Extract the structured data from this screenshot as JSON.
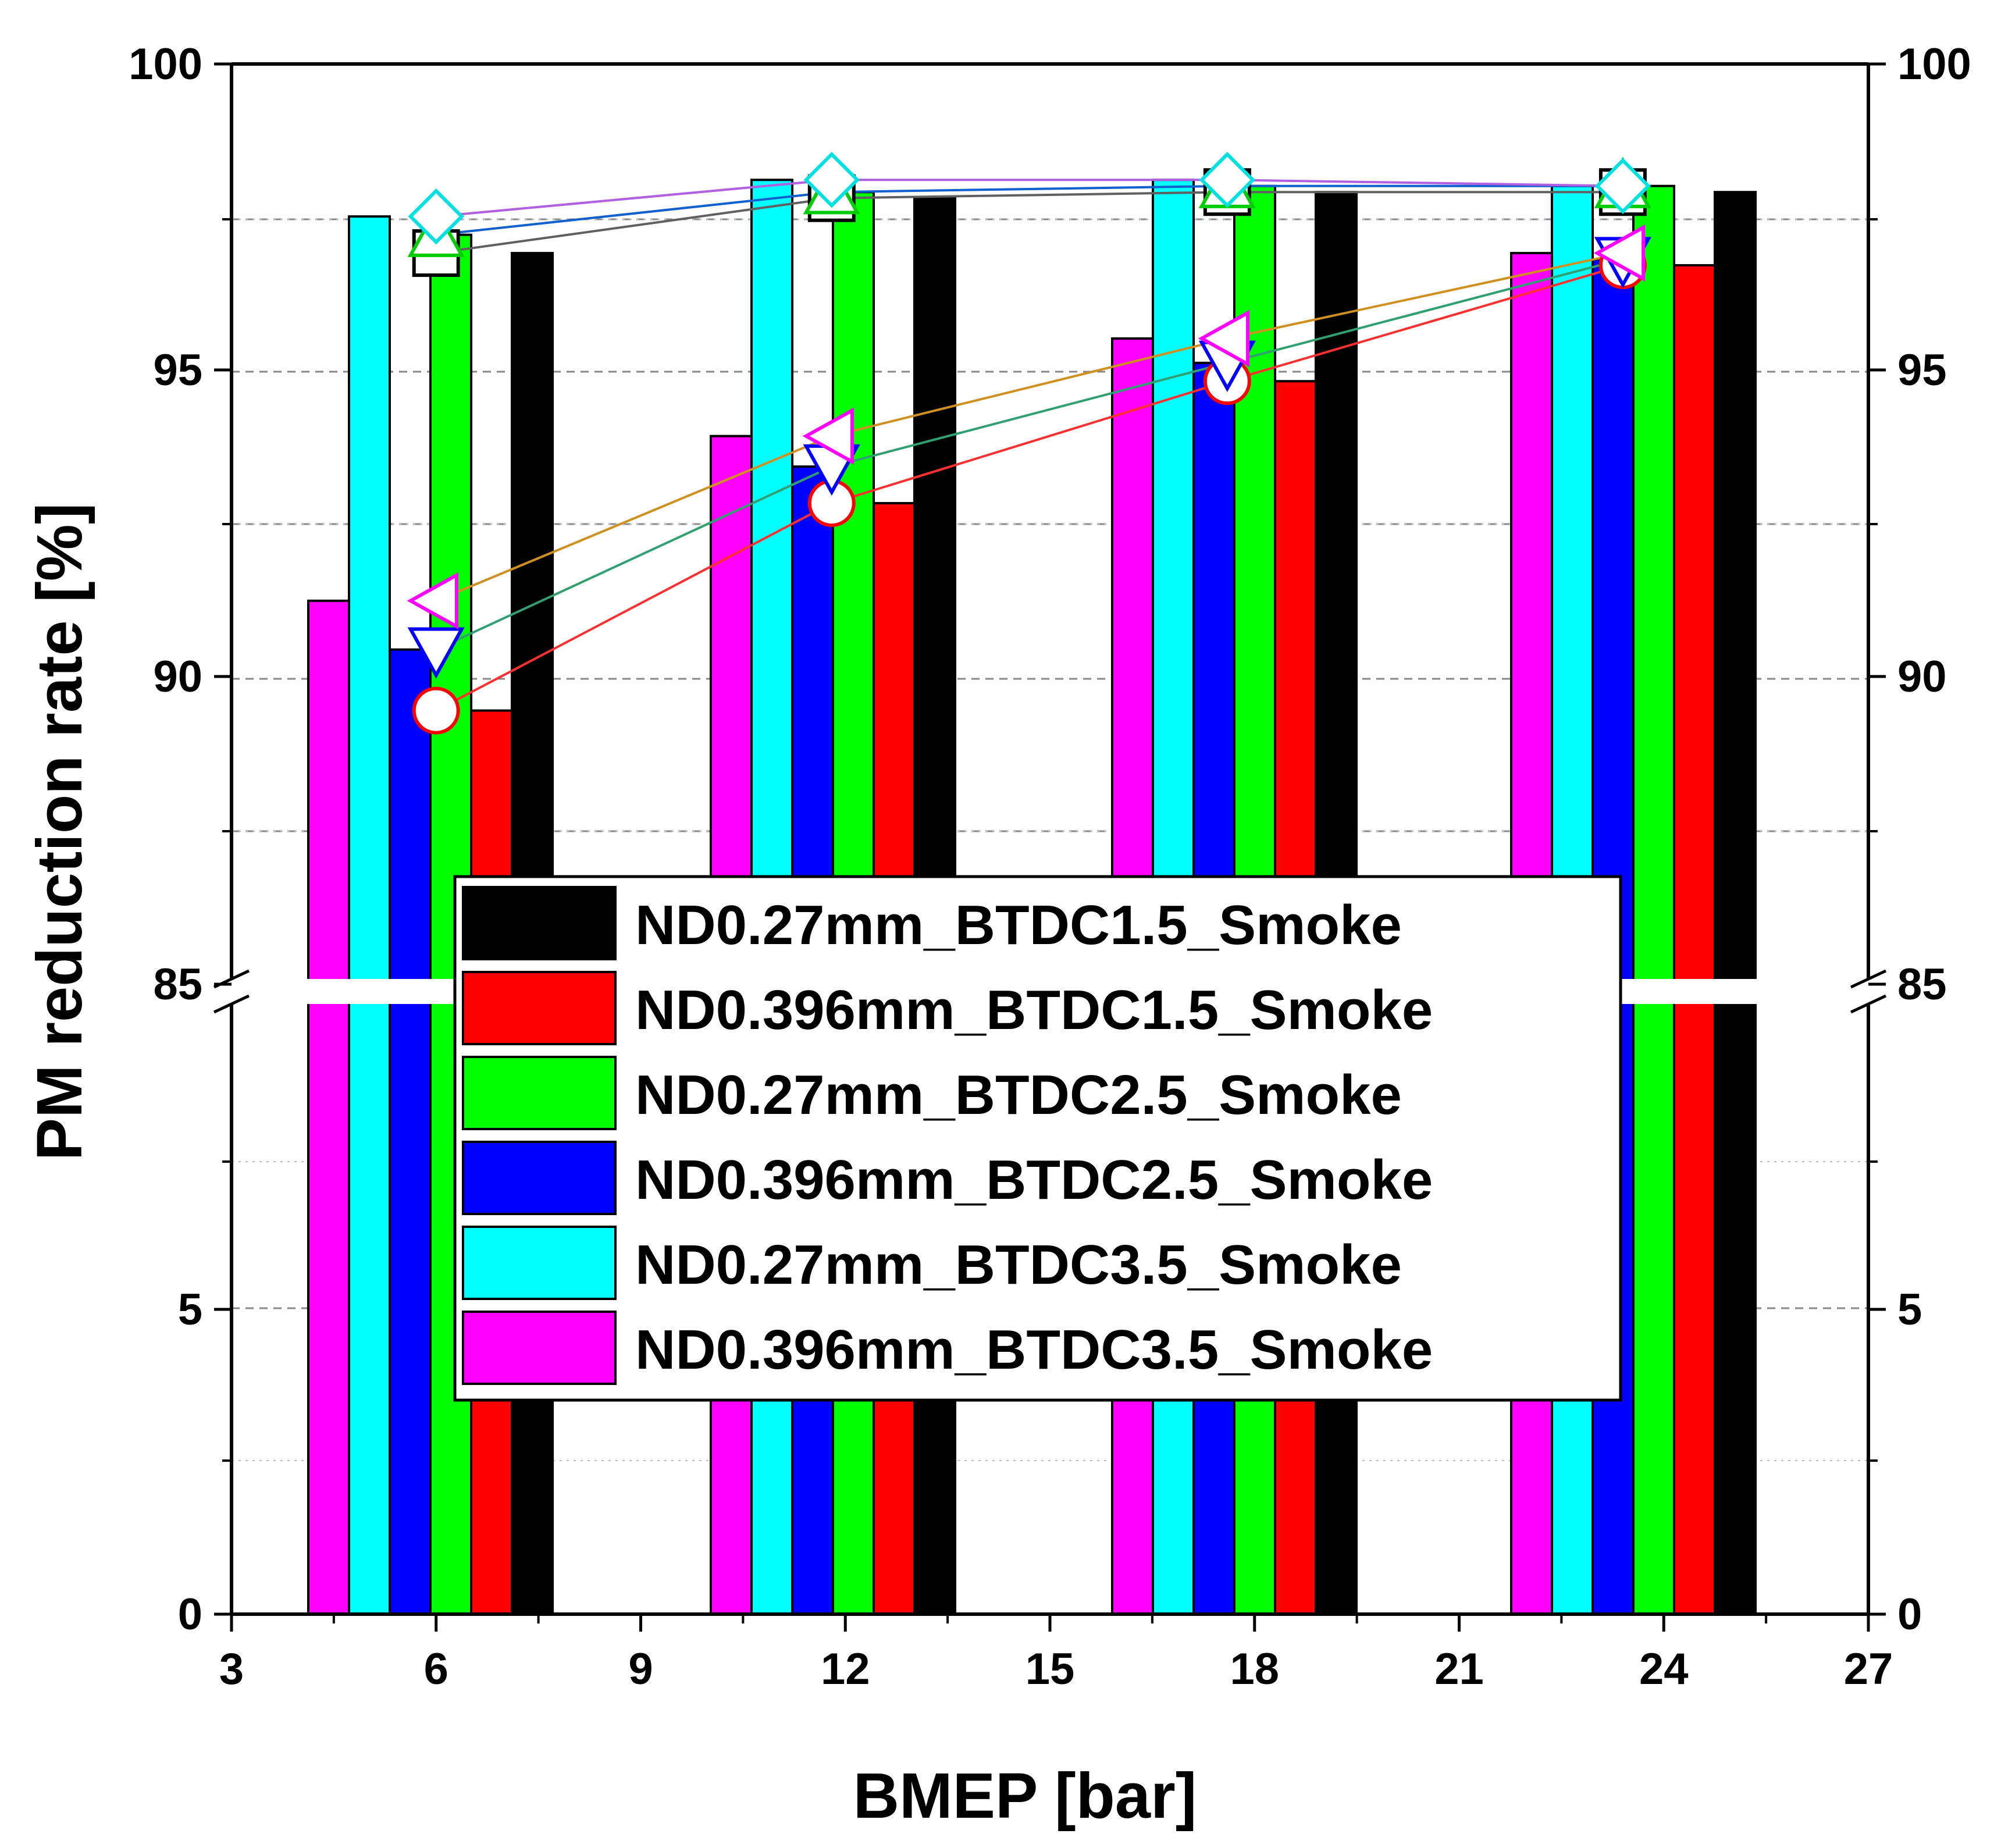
{
  "chart_data": {
    "type": "bar",
    "title": "",
    "xlabel": "BMEP [bar]",
    "ylabel": "PM reduction rate [%]",
    "x_ticks": [
      "3",
      "6",
      "9",
      "12",
      "15",
      "18",
      "21",
      "24",
      "27"
    ],
    "y_tick_labels": [
      "0",
      "5",
      "85",
      "90",
      "95",
      "100"
    ],
    "y_right_tick_labels": [
      "0",
      "5",
      "85",
      "90",
      "95",
      "100"
    ],
    "xlim": [
      3,
      27
    ],
    "y_axis_break": {
      "lower_segment": [
        0,
        10
      ],
      "upper_segment": [
        85,
        100
      ]
    },
    "categories": [
      "6",
      "12",
      "18",
      "24"
    ],
    "legend_position": "center",
    "series": [
      {
        "name": "ND0.396mm_BTDC3.5_Smoke",
        "color": "#ff00ff",
        "values": [
          91.2,
          93.9,
          95.5,
          96.9
        ]
      },
      {
        "name": "ND0.27mm_BTDC3.5_Smoke",
        "color": "#00ffff",
        "values": [
          97.5,
          98.1,
          98.1,
          98.0
        ]
      },
      {
        "name": "ND0.396mm_BTDC2.5_Smoke",
        "color": "#0000ff",
        "values": [
          90.4,
          93.4,
          95.1,
          96.8
        ]
      },
      {
        "name": "ND0.27mm_BTDC2.5_Smoke",
        "color": "#00ff00",
        "values": [
          97.2,
          97.9,
          98.0,
          98.0
        ]
      },
      {
        "name": "ND0.396mm_BTDC1.5_Smoke",
        "color": "#ff0000",
        "values": [
          89.4,
          92.8,
          94.8,
          96.7
        ]
      },
      {
        "name": "ND0.27mm_BTDC1.5_Smoke",
        "color": "#000000",
        "values": [
          96.9,
          97.8,
          97.9,
          97.9
        ]
      }
    ],
    "legend_order": [
      "ND0.27mm_BTDC1.5_Smoke",
      "ND0.396mm_BTDC1.5_Smoke",
      "ND0.27mm_BTDC2.5_Smoke",
      "ND0.396mm_BTDC2.5_Smoke",
      "ND0.27mm_BTDC3.5_Smoke",
      "ND0.396mm_BTDC3.5_Smoke"
    ],
    "line_series": [
      {
        "name": "ND0.27mm_BTDC1.5_Smoke",
        "marker": "square",
        "marker_color": "#000000",
        "line_color": "#606060",
        "x": [
          6,
          11.8,
          17.6,
          23.4
        ],
        "y": [
          96.9,
          97.8,
          97.9,
          97.9
        ]
      },
      {
        "name": "ND0.27mm_BTDC2.5_Smoke",
        "marker": "triangle-up",
        "marker_color": "#00cc00",
        "line_color": "#1060d0",
        "x": [
          6,
          11.8,
          17.6,
          23.4
        ],
        "y": [
          97.2,
          97.9,
          98.0,
          98.0
        ]
      },
      {
        "name": "ND0.27mm_BTDC3.5_Smoke",
        "marker": "diamond",
        "marker_color": "#00e0e0",
        "line_color": "#b060e0",
        "x": [
          6,
          11.8,
          17.6,
          23.4
        ],
        "y": [
          97.5,
          98.1,
          98.1,
          98.0
        ]
      },
      {
        "name": "ND0.396mm_BTDC1.5_Smoke",
        "marker": "circle",
        "marker_color": "#ff0000",
        "line_color": "#ff3030",
        "x": [
          6,
          11.8,
          17.6,
          23.4
        ],
        "y": [
          89.4,
          92.8,
          94.8,
          96.7
        ]
      },
      {
        "name": "ND0.396mm_BTDC2.5_Smoke",
        "marker": "triangle-down",
        "marker_color": "#0000ff",
        "line_color": "#30a070",
        "x": [
          6,
          11.8,
          17.6,
          23.4
        ],
        "y": [
          90.4,
          93.4,
          95.1,
          96.8
        ]
      },
      {
        "name": "ND0.396mm_BTDC3.5_Smoke",
        "marker": "triangle-left",
        "marker_color": "#ff00ff",
        "line_color": "#d09020",
        "x": [
          6,
          11.8,
          17.6,
          23.4
        ],
        "y": [
          91.2,
          93.9,
          95.5,
          96.9
        ]
      }
    ]
  }
}
